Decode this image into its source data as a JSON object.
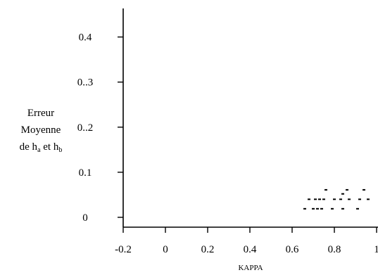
{
  "chart_data": {
    "type": "scatter",
    "xlabel": "KAPPA",
    "ylabel": {
      "line1": "Erreur",
      "line2": "Moyenne",
      "line3_prefix": "de h",
      "line3_sub_a": "a",
      "line3_middle": " et h",
      "line3_sub_b": "b"
    },
    "xlim": [
      -0.2,
      1.0
    ],
    "ylim": [
      -0.02,
      0.42
    ],
    "x_ticks": [
      -0.2,
      0,
      0.2,
      0.4,
      0.6,
      0.8,
      1.0
    ],
    "x_tick_labels": [
      "-0.2",
      "0",
      "0.2",
      "0.4",
      "0.6",
      "0.8",
      "1"
    ],
    "y_ticks": [
      0,
      0.1,
      0.2,
      0.3,
      0.4
    ],
    "y_tick_labels": [
      "0",
      "0.1",
      "0..2",
      "0..3",
      "0.4"
    ],
    "grid": false,
    "marker": "short-dash",
    "series": [
      {
        "points": [
          [
            0.76,
            0.061
          ],
          [
            0.86,
            0.061
          ],
          [
            0.94,
            0.061
          ],
          [
            0.84,
            0.052
          ],
          [
            0.68,
            0.04
          ],
          [
            0.71,
            0.04
          ],
          [
            0.73,
            0.04
          ],
          [
            0.75,
            0.04
          ],
          [
            0.8,
            0.04
          ],
          [
            0.83,
            0.04
          ],
          [
            0.87,
            0.04
          ],
          [
            0.92,
            0.04
          ],
          [
            0.96,
            0.04
          ],
          [
            0.66,
            0.019
          ],
          [
            0.7,
            0.019
          ],
          [
            0.72,
            0.019
          ],
          [
            0.74,
            0.019
          ],
          [
            0.79,
            0.019
          ],
          [
            0.84,
            0.019
          ],
          [
            0.91,
            0.019
          ]
        ]
      }
    ]
  }
}
